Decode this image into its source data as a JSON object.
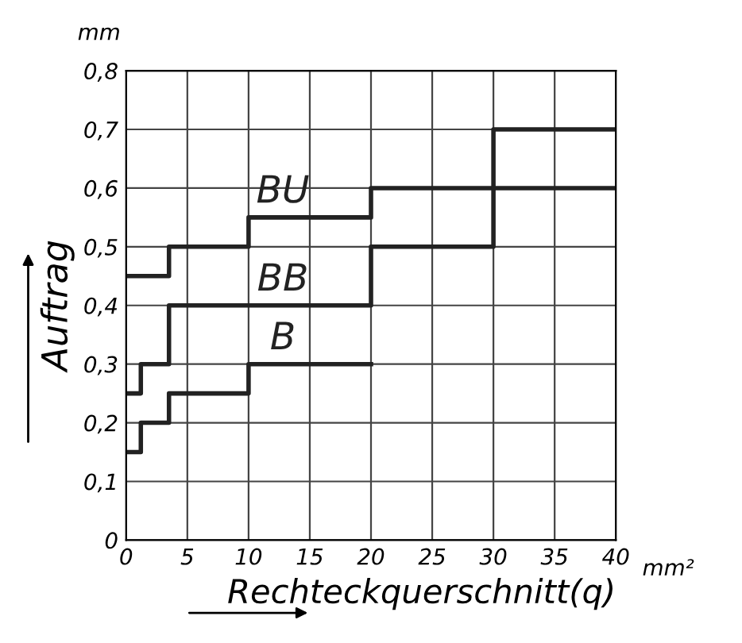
{
  "chart_data": {
    "type": "step",
    "xlabel": "Rechteckquerschnitt(q)",
    "ylabel": "Auftrag",
    "annotations": [
      "mm",
      "mm²"
    ],
    "xlim": [
      0,
      40
    ],
    "xticks": [
      0,
      5,
      10,
      15,
      20,
      25,
      30,
      35,
      40
    ],
    "ylim": [
      0,
      0.8
    ],
    "yticks": [
      0,
      {
        "value": 0.1,
        "label": "0,1"
      },
      {
        "value": 0.2,
        "label": "0,2"
      },
      {
        "value": 0.3,
        "label": "0,3"
      },
      {
        "value": 0.4,
        "label": "0,4"
      },
      {
        "value": 0.5,
        "label": "0,5"
      },
      {
        "value": 0.6,
        "label": "0,6"
      },
      {
        "value": 0.7,
        "label": "0,7"
      },
      {
        "value": 0.8,
        "label": "0,8"
      }
    ],
    "grid": true,
    "legend": false,
    "marker": "none",
    "line_style": "solid",
    "series": [
      {
        "name": "BU",
        "color": "#222222",
        "x": [
          0,
          3.5,
          10,
          20,
          30,
          40
        ],
        "values": [
          0.45,
          0.5,
          0.55,
          0.6,
          0.7,
          0.7
        ]
      },
      {
        "name": "BB",
        "color": "#222222",
        "x": [
          0,
          1.2,
          3.5,
          20,
          30,
          40
        ],
        "values": [
          0.25,
          0.3,
          0.4,
          0.5,
          0.6,
          0.6
        ]
      },
      {
        "name": "B",
        "color": "#222222",
        "x": [
          0,
          1.2,
          3.5,
          10,
          20
        ],
        "values": [
          0.15,
          0.2,
          0.25,
          0.3,
          0.3
        ]
      }
    ]
  }
}
